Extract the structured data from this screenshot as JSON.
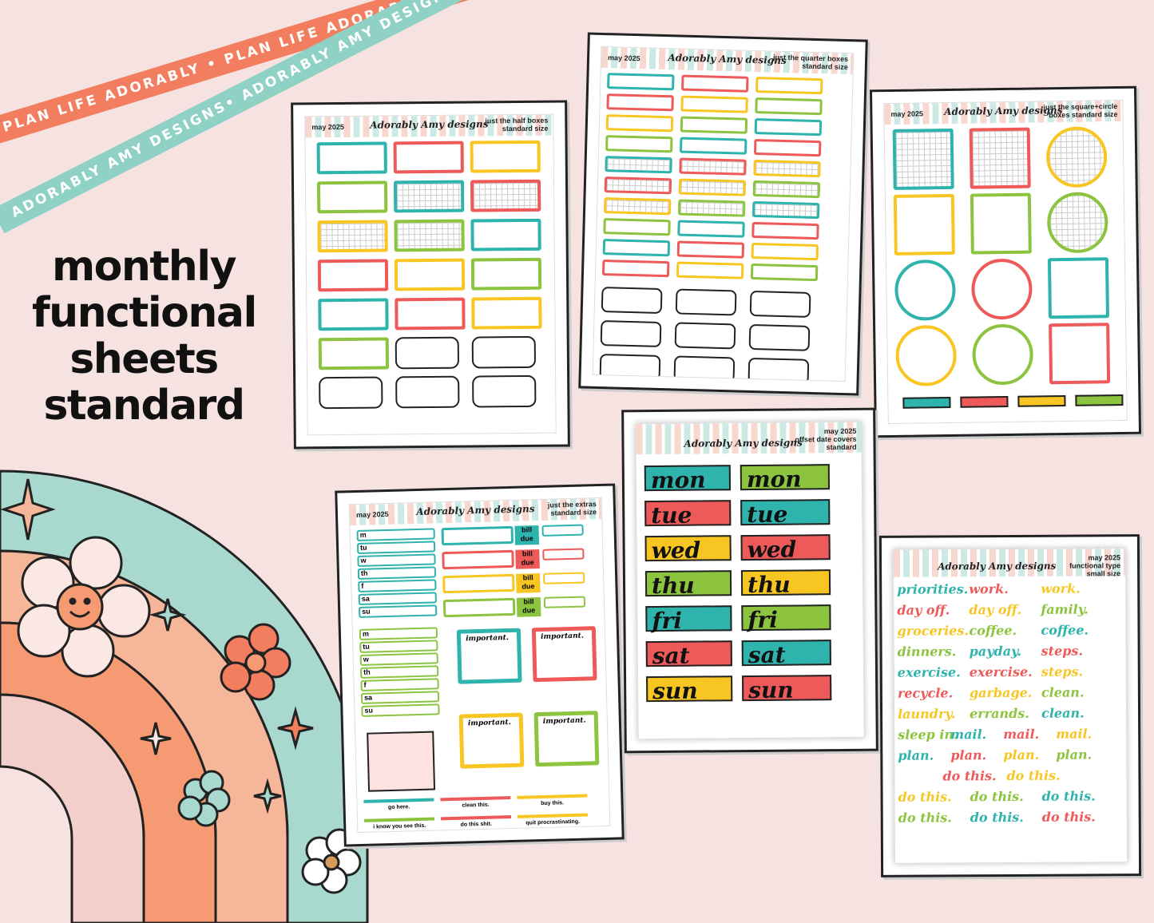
{
  "ribbons": {
    "orange": "PLAN LIFE ADORABLY • PLAN LIFE ADORABLY • PLAN LIFE ADORABLY •",
    "teal": "ADORABLY AMY DESIGNS• ADORABLY AMY DESIGNS• ADORABLY AMY DESIGNS•"
  },
  "headline": [
    "monthly",
    "functional",
    "sheets",
    "standard"
  ],
  "colors": {
    "teal": "#2fb3ad",
    "red": "#ee5a5a",
    "yellow": "#f7c623",
    "green": "#8cc43f",
    "background": "#f6e3e1"
  },
  "brand": "Adorably Amy designs",
  "sheets": {
    "half": {
      "month": "may 2025",
      "title1": "just the half boxes",
      "title2": "standard size"
    },
    "quarter": {
      "month": "may 2025",
      "title1": "just the quarter boxes",
      "title2": "standard size"
    },
    "square": {
      "month": "may 2025",
      "title1": "just the square+circle",
      "title2": "boxes standard size"
    },
    "extras": {
      "month": "may 2025",
      "title1": "just the extras",
      "title2": "standard size",
      "days": [
        "m",
        "tu",
        "w",
        "th",
        "f",
        "sa",
        "su"
      ],
      "bill_due": "bill due",
      "important": "important.",
      "strips": [
        "go here.",
        "clean this.",
        "buy this.",
        "i know you see this.",
        "do this shit.",
        "quit procrastinating."
      ]
    },
    "dates": {
      "month": "may 2025",
      "title1": "offset date covers",
      "title2": "standard",
      "left": [
        "mon",
        "tue",
        "wed",
        "thu",
        "fri",
        "sat",
        "sun"
      ],
      "right": [
        "mon",
        "tue",
        "wed",
        "thu",
        "fri",
        "sat",
        "sun"
      ]
    },
    "type": {
      "month": "may 2025",
      "title1": "functional type",
      "title2": "small size",
      "rows": [
        [
          "priorities.",
          "work.",
          "work."
        ],
        [
          "day off.",
          "day off.",
          "family."
        ],
        [
          "groceries.",
          "coffee.",
          "coffee."
        ],
        [
          "dinners.",
          "payday.",
          "steps."
        ],
        [
          "exercise.",
          "exercise.",
          "steps."
        ],
        [
          "recycle.",
          "garbage.",
          "clean."
        ],
        [
          "laundry.",
          "errands.",
          "clean."
        ],
        [
          "sleep in.",
          "mail.",
          "mail.",
          "mail."
        ],
        [
          "plan.",
          "plan.",
          "plan.",
          "plan."
        ],
        [
          "do this.",
          "do this."
        ],
        [
          "do this.",
          "do this.",
          "do this."
        ],
        [
          "do this.",
          "do this.",
          "do this."
        ]
      ]
    }
  }
}
